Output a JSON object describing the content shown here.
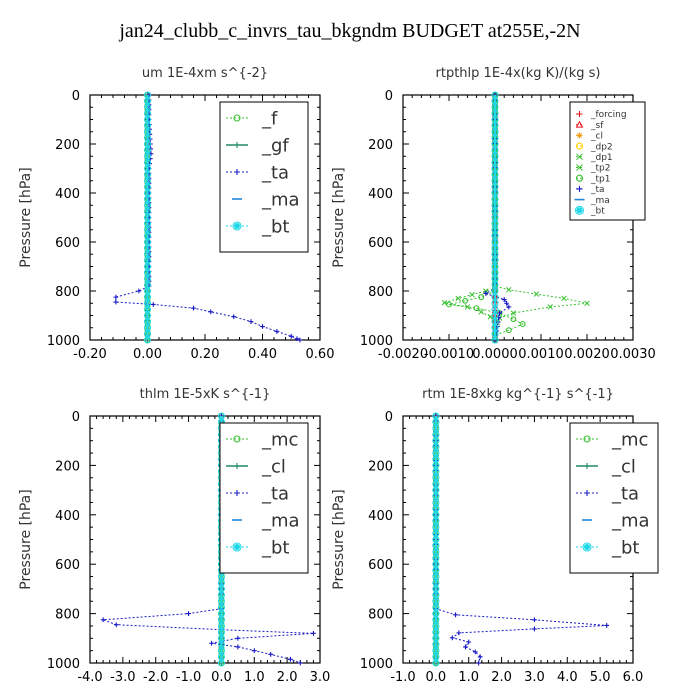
{
  "title": "jan24_clubb_c_invrs_tau_bkgndm  BUDGET at255E,-2N",
  "colors": {
    "red": "#e8141c",
    "orange": "#f0a020",
    "yellow": "#ffd000",
    "green": "#38c030",
    "teal": "#208a60",
    "blue": "#1818c8",
    "azure": "#2088d8",
    "cyan": "#20d8e8"
  },
  "chart_data": [
    {
      "type": "line",
      "title": "um   1E-4xm s^{-2}",
      "ylabel": "Pressure [hPa]",
      "xlim": [
        -0.2,
        0.6
      ],
      "ylim": [
        1000,
        0
      ],
      "xticks": [
        "-0.20",
        "0.00",
        "0.20",
        "0.40",
        "0.60"
      ],
      "yticks": [
        "0",
        "200",
        "400",
        "600",
        "800",
        "1000"
      ],
      "legend_position": "top-right",
      "series": [
        {
          "name": "_f",
          "color": "green",
          "marker": "o",
          "size": "small",
          "legend_symbol": "o",
          "points": [
            [
              0.0,
              0
            ],
            [
              0.0,
              100
            ],
            [
              0.0,
              200
            ],
            [
              0.0,
              300
            ],
            [
              0.0,
              400
            ],
            [
              0.0,
              500
            ],
            [
              0.0,
              600
            ],
            [
              0.0,
              700
            ],
            [
              0.0,
              800
            ],
            [
              0.0,
              900
            ],
            [
              0.0,
              1000
            ]
          ]
        },
        {
          "name": "_gf",
          "color": "teal",
          "marker": "+",
          "size": "small",
          "legend_symbol": "line",
          "points": [
            [
              0.0,
              0
            ],
            [
              0.0,
              100
            ],
            [
              0.0,
              200
            ],
            [
              0.0,
              300
            ],
            [
              0.0,
              400
            ],
            [
              0.0,
              500
            ],
            [
              0.0,
              600
            ],
            [
              0.0,
              700
            ],
            [
              0.0,
              800
            ],
            [
              0.0,
              900
            ],
            [
              0.0,
              1000
            ]
          ]
        },
        {
          "name": "_ta",
          "color": "blue",
          "marker": "+",
          "size": "small",
          "legend_symbol": "plus",
          "points": [
            [
              0.005,
              0
            ],
            [
              0.005,
              100
            ],
            [
              0.01,
              200
            ],
            [
              0.012,
              240
            ],
            [
              0.005,
              300
            ],
            [
              0.005,
              500
            ],
            [
              0.005,
              780
            ],
            [
              -0.03,
              800
            ],
            [
              -0.11,
              825
            ],
            [
              -0.11,
              845
            ],
            [
              0.02,
              855
            ],
            [
              0.16,
              870
            ],
            [
              0.22,
              885
            ],
            [
              0.3,
              905
            ],
            [
              0.36,
              925
            ],
            [
              0.4,
              945
            ],
            [
              0.45,
              965
            ],
            [
              0.5,
              985
            ],
            [
              0.52,
              995
            ],
            [
              0.53,
              1000
            ]
          ]
        },
        {
          "name": "_ma",
          "color": "azure",
          "marker": "-",
          "size": "small",
          "legend_symbol": "dash",
          "points": [
            [
              0.0,
              0
            ],
            [
              0.0,
              1000
            ]
          ]
        },
        {
          "name": "_bt",
          "color": "cyan",
          "marker": "o",
          "size": "big",
          "legend_symbol": "o",
          "points": [
            [
              0.0,
              0
            ],
            [
              0.0,
              1000
            ]
          ]
        }
      ]
    },
    {
      "type": "line",
      "title": "rtpthlp   1E-4x(kg K)/(kg s)",
      "ylabel": "Pressure [hPa]",
      "xlim": [
        -0.002,
        0.003
      ],
      "ylim": [
        1000,
        0
      ],
      "xticks": [
        "-0.0020",
        "-0.0010",
        "0.0000",
        "0.0010",
        "0.0020",
        "0.0030"
      ],
      "yticks": [
        "0",
        "200",
        "400",
        "600",
        "800",
        "1000"
      ],
      "legend_position": "top-right",
      "series": [
        {
          "name": "_forcing",
          "color": "red",
          "marker": "-",
          "size": "small",
          "legend_symbol": "plus",
          "points": [
            [
              0.0,
              0
            ],
            [
              0.0,
              1000
            ]
          ]
        },
        {
          "name": "_sf",
          "color": "red",
          "marker": "-",
          "size": "small",
          "legend_symbol": "triangle",
          "points": [
            [
              0.0,
              0
            ],
            [
              0.0,
              1000
            ]
          ]
        },
        {
          "name": "_cl",
          "color": "orange",
          "marker": "-",
          "size": "small",
          "legend_symbol": "star",
          "points": [
            [
              0.0,
              0
            ],
            [
              0.0,
              1000
            ]
          ]
        },
        {
          "name": "_dp2",
          "color": "yellow",
          "marker": "-",
          "size": "small",
          "legend_symbol": "o",
          "points": [
            [
              0.0,
              0
            ],
            [
              0.0,
              1000
            ]
          ]
        },
        {
          "name": "_dp1",
          "color": "green",
          "marker": "x",
          "size": "small",
          "legend_symbol": "x",
          "points": [
            [
              0.0,
              0
            ],
            [
              0.0,
              790
            ],
            [
              -0.0002,
              800
            ],
            [
              -0.0008,
              830
            ],
            [
              -0.0011,
              848
            ],
            [
              -0.0006,
              865
            ],
            [
              -0.0003,
              885
            ],
            [
              -0.0001,
              905
            ],
            [
              0.0,
              930
            ],
            [
              0.0,
              1000
            ]
          ]
        },
        {
          "name": "_tp2",
          "color": "green",
          "marker": "x",
          "size": "small",
          "legend_symbol": "x",
          "points": [
            [
              0.0,
              0
            ],
            [
              0.0,
              780
            ],
            [
              0.0003,
              795
            ],
            [
              0.0015,
              830
            ],
            [
              0.002,
              850
            ],
            [
              0.0012,
              865
            ],
            [
              0.0004,
              890
            ],
            [
              0.0001,
              910
            ],
            [
              0.0,
              950
            ],
            [
              0.0,
              1000
            ]
          ]
        },
        {
          "name": "_tp1",
          "color": "green",
          "marker": "o",
          "size": "small",
          "legend_symbol": "o",
          "points": [
            [
              0.0,
              0
            ],
            [
              0.0,
              800
            ],
            [
              -0.0003,
              825
            ],
            [
              -0.001,
              855
            ],
            [
              -0.0004,
              870
            ],
            [
              0.0001,
              890
            ],
            [
              0.0004,
              915
            ],
            [
              0.0006,
              935
            ],
            [
              0.0003,
              960
            ],
            [
              0.0,
              980
            ],
            [
              0.0,
              1000
            ]
          ]
        },
        {
          "name": "_ta",
          "color": "blue",
          "marker": "+",
          "size": "small",
          "legend_symbol": "plus",
          "points": [
            [
              0.0,
              0
            ],
            [
              0.0,
              790
            ],
            [
              -0.0002,
              810
            ],
            [
              0.0002,
              835
            ],
            [
              0.0003,
              865
            ],
            [
              0.0001,
              890
            ],
            [
              0.0,
              1000
            ]
          ]
        },
        {
          "name": "_ma",
          "color": "azure",
          "marker": "-",
          "size": "small",
          "legend_symbol": "dash",
          "points": [
            [
              0.0,
              0
            ],
            [
              0.0,
              1000
            ]
          ]
        },
        {
          "name": "_bt",
          "color": "cyan",
          "marker": "o",
          "size": "big",
          "legend_symbol": "o",
          "points": [
            [
              0.0,
              0
            ],
            [
              0.0,
              1000
            ]
          ]
        }
      ]
    },
    {
      "type": "line",
      "title": "thlm   1E-5xK s^{-1}",
      "ylabel": "Pressure [hPa]",
      "xlim": [
        -4.0,
        3.0
      ],
      "ylim": [
        1000,
        0
      ],
      "xticks": [
        "-4.0",
        "-3.0",
        "-2.0",
        "-1.0",
        "0.0",
        "1.0",
        "2.0",
        "3.0"
      ],
      "yticks": [
        "0",
        "200",
        "400",
        "600",
        "800",
        "1000"
      ],
      "legend_position": "top-right",
      "series": [
        {
          "name": "_mc",
          "color": "green",
          "marker": "o",
          "size": "small",
          "legend_symbol": "o",
          "points": [
            [
              0.0,
              0
            ],
            [
              0.0,
              1000
            ]
          ]
        },
        {
          "name": "_cl",
          "color": "teal",
          "marker": "+",
          "size": "small",
          "legend_symbol": "line",
          "points": [
            [
              0.0,
              0
            ],
            [
              0.0,
              1000
            ]
          ]
        },
        {
          "name": "_ta",
          "color": "blue",
          "marker": "+",
          "size": "small",
          "legend_symbol": "plus",
          "points": [
            [
              0.0,
              0
            ],
            [
              0.0,
              780
            ],
            [
              -1.0,
              800
            ],
            [
              -3.6,
              825
            ],
            [
              -3.2,
              845
            ],
            [
              0.0,
              865
            ],
            [
              2.8,
              880
            ],
            [
              0.5,
              900
            ],
            [
              -0.3,
              920
            ],
            [
              0.5,
              935
            ],
            [
              1.0,
              950
            ],
            [
              1.5,
              965
            ],
            [
              2.1,
              985
            ],
            [
              2.4,
              1000
            ]
          ]
        },
        {
          "name": "_ma",
          "color": "azure",
          "marker": "-",
          "size": "small",
          "legend_symbol": "dash",
          "points": [
            [
              0.0,
              0
            ],
            [
              0.0,
              1000
            ]
          ]
        },
        {
          "name": "_bt",
          "color": "cyan",
          "marker": "o",
          "size": "big",
          "legend_symbol": "o",
          "points": [
            [
              0.0,
              0
            ],
            [
              0.0,
              1000
            ]
          ]
        }
      ]
    },
    {
      "type": "line",
      "title": "rtm   1E-8xkg kg^{-1} s^{-1}",
      "ylabel": "Pressure [hPa]",
      "xlim": [
        -1.0,
        6.0
      ],
      "ylim": [
        1000,
        0
      ],
      "xticks": [
        "-1.0",
        "0.0",
        "1.0",
        "2.0",
        "3.0",
        "4.0",
        "5.0",
        "6.0"
      ],
      "yticks": [
        "0",
        "200",
        "400",
        "600",
        "800",
        "1000"
      ],
      "legend_position": "top-right",
      "series": [
        {
          "name": "_mc",
          "color": "green",
          "marker": "o",
          "size": "small",
          "legend_symbol": "o",
          "points": [
            [
              0.0,
              0
            ],
            [
              0.0,
              1000
            ]
          ]
        },
        {
          "name": "_cl",
          "color": "teal",
          "marker": "+",
          "size": "small",
          "legend_symbol": "line",
          "points": [
            [
              0.0,
              0
            ],
            [
              0.0,
              1000
            ]
          ]
        },
        {
          "name": "_ta",
          "color": "blue",
          "marker": "+",
          "size": "small",
          "legend_symbol": "plus",
          "points": [
            [
              0.0,
              0
            ],
            [
              0.0,
              780
            ],
            [
              0.6,
              805
            ],
            [
              3.0,
              825
            ],
            [
              5.2,
              848
            ],
            [
              3.0,
              862
            ],
            [
              0.7,
              878
            ],
            [
              0.5,
              898
            ],
            [
              1.0,
              915
            ],
            [
              0.9,
              935
            ],
            [
              1.2,
              955
            ],
            [
              1.35,
              975
            ],
            [
              1.3,
              1000
            ]
          ]
        },
        {
          "name": "_ma",
          "color": "azure",
          "marker": "-",
          "size": "small",
          "legend_symbol": "dash",
          "points": [
            [
              0.0,
              0
            ],
            [
              0.0,
              1000
            ]
          ]
        },
        {
          "name": "_bt",
          "color": "cyan",
          "marker": "o",
          "size": "big",
          "legend_symbol": "o",
          "points": [
            [
              0.0,
              0
            ],
            [
              0.0,
              1000
            ]
          ]
        }
      ]
    }
  ]
}
